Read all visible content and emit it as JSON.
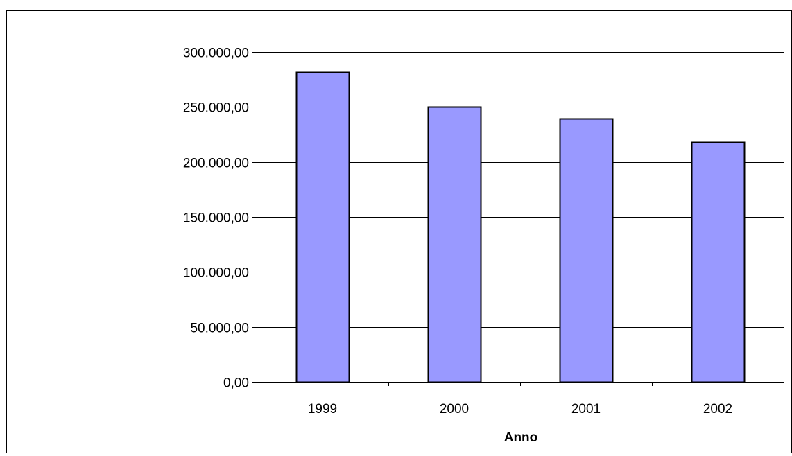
{
  "chart_data": {
    "type": "bar",
    "title": "",
    "xlabel": "Anno",
    "ylabel": "",
    "categories": [
      "1999",
      "2000",
      "2001",
      "2002"
    ],
    "values": [
      281500,
      250300,
      239800,
      218200
    ],
    "ylim": [
      0,
      300000
    ],
    "yticks": [
      0,
      50000,
      100000,
      150000,
      200000,
      250000,
      300000
    ],
    "ytick_labels": [
      "0,00",
      "50.000,00",
      "100.000,00",
      "150.000,00",
      "200.000,00",
      "250.000,00",
      "300.000,00"
    ],
    "grid": true,
    "legend": "none",
    "bar_color": "#9999ff",
    "bar_border_color": "#000000"
  }
}
